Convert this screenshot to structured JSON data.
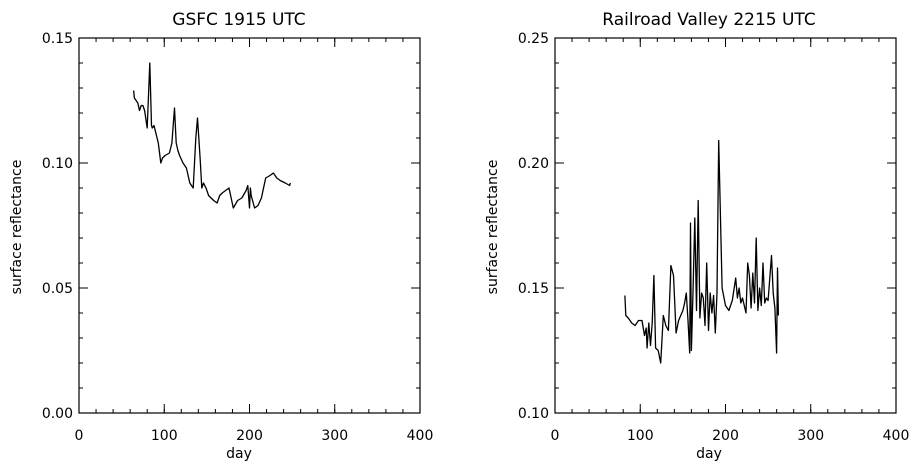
{
  "chart_data": [
    {
      "type": "line",
      "title": "GSFC 1915 UTC",
      "xlabel": "day",
      "ylabel": "surface reflectance",
      "xlim": [
        0,
        400
      ],
      "ylim": [
        0.0,
        0.15
      ],
      "xticks": [
        0,
        100,
        200,
        300,
        400
      ],
      "xtick_labels": [
        "0",
        "100",
        "200",
        "300",
        "400"
      ],
      "yticks": [
        0.0,
        0.05,
        0.1,
        0.15
      ],
      "ytick_labels": [
        "0.00",
        "0.05",
        "0.10",
        "0.15"
      ],
      "x_minor_step": 20,
      "y_minor_step": 0.01,
      "grid": false,
      "series": [
        {
          "x": [
            64,
            65,
            67,
            69,
            71,
            73,
            75,
            77,
            80,
            83,
            85,
            86,
            88,
            93,
            96,
            98,
            101,
            106,
            109,
            112,
            114,
            116,
            118,
            122,
            126,
            130,
            134,
            137,
            139,
            142,
            144,
            146,
            149,
            152,
            155,
            158,
            162,
            165,
            168,
            172,
            176,
            181,
            186,
            191,
            196,
            198,
            200,
            201,
            202,
            206,
            210,
            214,
            219,
            224,
            228,
            232,
            236,
            242,
            247,
            248
          ],
          "y": [
            0.129,
            0.126,
            0.125,
            0.124,
            0.121,
            0.123,
            0.123,
            0.121,
            0.114,
            0.14,
            0.115,
            0.114,
            0.115,
            0.108,
            0.1,
            0.102,
            0.103,
            0.104,
            0.108,
            0.122,
            0.108,
            0.105,
            0.103,
            0.1,
            0.098,
            0.092,
            0.09,
            0.11,
            0.118,
            0.102,
            0.09,
            0.092,
            0.09,
            0.087,
            0.086,
            0.085,
            0.084,
            0.087,
            0.088,
            0.089,
            0.09,
            0.082,
            0.085,
            0.086,
            0.089,
            0.091,
            0.082,
            0.09,
            0.087,
            0.082,
            0.083,
            0.086,
            0.094,
            0.095,
            0.096,
            0.094,
            0.093,
            0.092,
            0.091,
            0.092
          ]
        }
      ]
    },
    {
      "type": "line",
      "title": "Railroad Valley 2215 UTC",
      "xlabel": "day",
      "ylabel": "surface reflectance",
      "xlim": [
        0,
        400
      ],
      "ylim": [
        0.1,
        0.25
      ],
      "xticks": [
        0,
        100,
        200,
        300,
        400
      ],
      "xtick_labels": [
        "0",
        "100",
        "200",
        "300",
        "400"
      ],
      "yticks": [
        0.1,
        0.15,
        0.2,
        0.25
      ],
      "ytick_labels": [
        "0.10",
        "0.15",
        "0.20",
        "0.25"
      ],
      "x_minor_step": 20,
      "y_minor_step": 0.01,
      "grid": false,
      "series": [
        {
          "x": [
            82,
            83,
            86,
            90,
            94,
            98,
            102,
            105,
            107,
            108,
            110,
            112,
            114,
            116,
            118,
            121,
            124,
            127,
            130,
            133,
            136,
            139,
            142,
            145,
            150,
            152,
            154,
            156,
            158,
            159,
            160,
            162,
            164,
            166,
            168,
            170,
            172,
            174,
            176,
            178,
            180,
            182,
            184,
            186,
            188,
            190,
            192,
            196,
            200,
            204,
            208,
            212,
            214,
            216,
            218,
            220,
            224,
            226,
            228,
            230,
            232,
            234,
            236,
            238,
            240,
            242,
            244,
            246,
            248,
            250,
            252,
            254,
            256,
            258,
            260,
            261,
            262
          ],
          "y": [
            0.147,
            0.139,
            0.138,
            0.136,
            0.135,
            0.137,
            0.137,
            0.131,
            0.134,
            0.126,
            0.136,
            0.127,
            0.136,
            0.155,
            0.126,
            0.125,
            0.12,
            0.139,
            0.135,
            0.133,
            0.159,
            0.155,
            0.132,
            0.137,
            0.141,
            0.144,
            0.148,
            0.137,
            0.124,
            0.176,
            0.125,
            0.15,
            0.178,
            0.141,
            0.185,
            0.138,
            0.148,
            0.146,
            0.135,
            0.16,
            0.133,
            0.148,
            0.14,
            0.147,
            0.132,
            0.148,
            0.209,
            0.15,
            0.143,
            0.141,
            0.145,
            0.154,
            0.146,
            0.15,
            0.144,
            0.146,
            0.14,
            0.16,
            0.155,
            0.142,
            0.156,
            0.144,
            0.17,
            0.141,
            0.15,
            0.143,
            0.16,
            0.144,
            0.146,
            0.145,
            0.154,
            0.163,
            0.148,
            0.142,
            0.124,
            0.158,
            0.139
          ]
        }
      ]
    }
  ]
}
